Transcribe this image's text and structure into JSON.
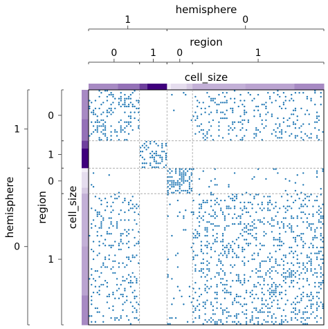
{
  "labels": {
    "top_outer": "hemisphere",
    "top_inner": "region",
    "colorbar_top": "cell_size",
    "left_outer": "hemisphere",
    "left_inner": "region",
    "colorbar_left": "cell_size"
  },
  "colors": {
    "point": "#1f77b4",
    "colormap_dark": "#3f007d",
    "colormap_light": "#fcfbfd",
    "grid_line": "#a0a0a0",
    "axis_line": "#555555"
  },
  "chart_data": {
    "type": "scatter",
    "description_kind": "adjacency_matrix",
    "title": "",
    "node_count": 120,
    "grid": true,
    "hemisphere_groups": [
      {
        "label": "1",
        "start": 0,
        "end": 40
      },
      {
        "label": "0",
        "start": 40,
        "end": 120
      }
    ],
    "region_groups": [
      {
        "label": "0",
        "start": 0,
        "end": 26
      },
      {
        "label": "1",
        "start": 26,
        "end": 40
      },
      {
        "label": "0",
        "start": 40,
        "end": 53
      },
      {
        "label": "1",
        "start": 53,
        "end": 120
      }
    ],
    "cell_size_colorbar": [
      {
        "start": 0,
        "end": 15,
        "level": 0.45
      },
      {
        "start": 15,
        "end": 26,
        "level": 0.55
      },
      {
        "start": 26,
        "end": 30,
        "level": 0.75
      },
      {
        "start": 30,
        "end": 40,
        "level": 1.0
      },
      {
        "start": 40,
        "end": 42,
        "level": 0.05
      },
      {
        "start": 42,
        "end": 50,
        "level": 0.12
      },
      {
        "start": 50,
        "end": 53,
        "level": 0.2
      },
      {
        "start": 53,
        "end": 80,
        "level": 0.3
      },
      {
        "start": 80,
        "end": 105,
        "level": 0.35
      },
      {
        "start": 105,
        "end": 120,
        "level": 0.45
      }
    ],
    "block_density": [
      [
        0.22,
        0.0,
        0.01,
        0.14
      ],
      [
        0.0,
        0.4,
        0.0,
        0.0
      ],
      [
        0.01,
        0.0,
        0.6,
        0.05
      ],
      [
        0.12,
        0.0,
        0.05,
        0.22
      ]
    ],
    "random_seed": 7
  }
}
